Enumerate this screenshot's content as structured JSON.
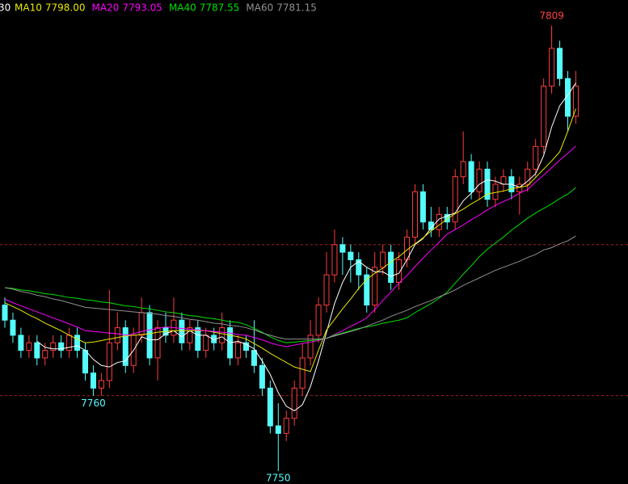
{
  "chart_data": {
    "type": "candlestick",
    "header_fragment": "30",
    "ylim": [
      7748.3,
      7812.4
    ],
    "dashed_levels": [
      7760,
      7780
    ],
    "up_color": "#ff3c3c",
    "down_color": "#54fcfc",
    "level_color": "#a02020",
    "candles": [
      [
        7772,
        7773,
        7769,
        7770
      ],
      [
        7770,
        7771,
        7767,
        7768
      ],
      [
        7768,
        7769,
        7765,
        7766
      ],
      [
        7766,
        7768,
        7765,
        7767
      ],
      [
        7767,
        7768,
        7764,
        7765
      ],
      [
        7765,
        7767,
        7764,
        7766
      ],
      [
        7766,
        7768,
        7765,
        7767
      ],
      [
        7767,
        7768,
        7765,
        7766
      ],
      [
        7766,
        7769,
        7765,
        7768
      ],
      [
        7768,
        7769,
        7765,
        7766
      ],
      [
        7766,
        7767,
        7762,
        7763
      ],
      [
        7763,
        7764,
        7760,
        7761
      ],
      [
        7761,
        7763,
        7760,
        7762
      ],
      [
        7762,
        7774,
        7761,
        7767
      ],
      [
        7767,
        7771,
        7766,
        7769
      ],
      [
        7769,
        7770,
        7763,
        7764
      ],
      [
        7764,
        7769,
        7763,
        7768
      ],
      [
        7768,
        7773,
        7767,
        7771
      ],
      [
        7771,
        7772,
        7764,
        7765
      ],
      [
        7765,
        7770,
        7762,
        7769
      ],
      [
        7769,
        7771,
        7767,
        7768
      ],
      [
        7768,
        7773,
        7767,
        7770
      ],
      [
        7770,
        7771,
        7766,
        7767
      ],
      [
        7767,
        7770,
        7766,
        7769
      ],
      [
        7769,
        7770,
        7765,
        7766
      ],
      [
        7766,
        7769,
        7765,
        7768
      ],
      [
        7768,
        7769,
        7766,
        7767
      ],
      [
        7767,
        7771,
        7766,
        7769
      ],
      [
        7769,
        7770,
        7764,
        7765
      ],
      [
        7765,
        7768,
        7764,
        7767
      ],
      [
        7767,
        7768,
        7765,
        7766
      ],
      [
        7766,
        7770,
        7763,
        7764
      ],
      [
        7764,
        7765,
        7760,
        7761
      ],
      [
        7761,
        7762,
        7755,
        7756
      ],
      [
        7756,
        7759,
        7750,
        7755
      ],
      [
        7755,
        7758,
        7754,
        7757
      ],
      [
        7757,
        7762,
        7756,
        7761
      ],
      [
        7761,
        7767,
        7760,
        7765
      ],
      [
        7765,
        7770,
        7764,
        7768
      ],
      [
        7768,
        7773,
        7767,
        7772
      ],
      [
        7772,
        7779,
        7771,
        7776
      ],
      [
        7776,
        7782,
        7775,
        7780
      ],
      [
        7780,
        7781,
        7776,
        7779
      ],
      [
        7779,
        7780,
        7775,
        7778
      ],
      [
        7778,
        7779,
        7774,
        7776
      ],
      [
        7776,
        7777,
        7771,
        7772
      ],
      [
        7772,
        7779,
        7771,
        7777
      ],
      [
        7777,
        7780,
        7776,
        7779
      ],
      [
        7779,
        7780,
        7774,
        7775
      ],
      [
        7775,
        7779,
        7774,
        7778
      ],
      [
        7778,
        7782,
        7777,
        7781
      ],
      [
        7781,
        7788,
        7780,
        7787
      ],
      [
        7787,
        7788,
        7782,
        7783
      ],
      [
        7783,
        7785,
        7781,
        7782
      ],
      [
        7782,
        7785,
        7781,
        7784
      ],
      [
        7784,
        7785,
        7782,
        7783
      ],
      [
        7783,
        7790,
        7782,
        7789
      ],
      [
        7789,
        7795,
        7788,
        7791
      ],
      [
        7791,
        7792,
        7786,
        7787
      ],
      [
        7787,
        7791,
        7786,
        7790
      ],
      [
        7790,
        7791,
        7785,
        7786
      ],
      [
        7786,
        7789,
        7785,
        7788
      ],
      [
        7788,
        7790,
        7787,
        7789
      ],
      [
        7789,
        7790,
        7786,
        7787
      ],
      [
        7787,
        7789,
        7784,
        7788
      ],
      [
        7788,
        7791,
        7787,
        7790
      ],
      [
        7790,
        7794,
        7789,
        7793
      ],
      [
        7793,
        7802,
        7792,
        7801
      ],
      [
        7801,
        7809,
        7800,
        7806
      ],
      [
        7806,
        7807,
        7801,
        7802
      ],
      [
        7802,
        7803,
        7795,
        7797
      ],
      [
        7797,
        7803,
        7796,
        7801
      ]
    ],
    "series": [
      {
        "color": "#ffffff",
        "values": [
          null,
          null,
          null,
          null,
          7767.2,
          7766.4,
          7766.2,
          7766.2,
          7766.4,
          7766.6,
          7766.0,
          7764.8,
          7764.0,
          7763.8,
          7764.4,
          7764.6,
          7766.0,
          7767.8,
          7767.4,
          7767.4,
          7768.2,
          7768.6,
          7767.8,
          7768.6,
          7768.0,
          7768.0,
          7767.4,
          7767.8,
          7767.0,
          7767.2,
          7766.8,
          7766.2,
          7764.6,
          7762.8,
          7760.4,
          7758.6,
          7758.0,
          7758.8,
          7761.2,
          7764.6,
          7768.4,
          7772.2,
          7775.0,
          7777.0,
          7777.8,
          7777.0,
          7776.4,
          7776.4,
          7775.8,
          7776.2,
          7778.0,
          7780.0,
          7780.8,
          7782.2,
          7783.4,
          7783.8,
          7784.2,
          7785.8,
          7786.8,
          7788.0,
          7788.6,
          7788.4,
          7788.0,
          7788.0,
          7787.6,
          7788.4,
          7789.4,
          7791.8,
          7795.6,
          7798.4,
          7799.8,
          7801.4
        ]
      },
      {
        "name": "MA10",
        "color": "#e8e800",
        "last": {
          "value": 7798,
          "label": "7798.00"
        },
        "values": [
          7772.3,
          7771.8,
          7771.3,
          7770.7,
          7770.2,
          7769.6,
          7769.1,
          7768.6,
          7768.0,
          7767.5,
          7767.0,
          7767.1,
          7767.3,
          7767.5,
          7767.7,
          7767.9,
          7768.0,
          7768.1,
          7768.2,
          7768.4,
          7768.5,
          7768.6,
          7768.6,
          7768.6,
          7768.6,
          7768.6,
          7768.4,
          7768.2,
          7768.0,
          7767.8,
          7767.5,
          7766.9,
          7766.3,
          7765.6,
          7765.0,
          7764.4,
          7763.8,
          7763.5,
          7763.2,
          7766.0,
          7768.7,
          7770.1,
          7771.5,
          7772.8,
          7774.2,
          7775.4,
          7776.2,
          7776.9,
          7777.7,
          7778.4,
          7779.3,
          7780.1,
          7780.9,
          7781.8,
          7782.6,
          7783.4,
          7784.1,
          7784.7,
          7785.4,
          7786.0,
          7786.7,
          7786.9,
          7787.1,
          7787.4,
          7787.6,
          7787.8,
          7788.9,
          7790.0,
          7791.1,
          7792.3,
          7795.0,
          7798
        ]
      },
      {
        "name": "MA20",
        "color": "#ff00ff",
        "last": {
          "value": 7793.05,
          "label": "7793.05"
        },
        "values": [
          7772.8,
          7772.3,
          7771.9,
          7771.5,
          7771.1,
          7770.7,
          7770.3,
          7769.9,
          7769.5,
          7769.1,
          7768.6,
          7768.5,
          7768.4,
          7768.3,
          7768.2,
          7768.0,
          7768.2,
          7768.5,
          7768.7,
          7768.9,
          7769.1,
          7769.0,
          7768.9,
          7768.8,
          7768.7,
          7768.6,
          7768.5,
          7768.4,
          7768.3,
          7768.1,
          7768.0,
          7767.7,
          7767.4,
          7767.0,
          7766.7,
          7766.5,
          7766.7,
          7766.9,
          7767.1,
          7767.3,
          7767.6,
          7768.1,
          7768.6,
          7769.2,
          7769.7,
          7770.3,
          7771.4,
          7772.6,
          7773.7,
          7774.9,
          7775.9,
          7777.1,
          7778.2,
          7779.3,
          7780.3,
          7781.4,
          7782.0,
          7782.6,
          7783.3,
          7783.9,
          7784.6,
          7785.2,
          7785.7,
          7786.2,
          7786.8,
          7787.3,
          7788.3,
          7789.2,
          7790.2,
          7791.2,
          7792.1,
          7793.05
        ]
      },
      {
        "name": "MA40",
        "color": "#00e000",
        "last": {
          "value": 7787.55,
          "label": "7787.55"
        },
        "values": [
          7774.3,
          7774.2,
          7774.0,
          7773.9,
          7773.7,
          7773.5,
          7773.4,
          7773.2,
          7773.0,
          7772.9,
          7772.7,
          7772.6,
          7772.4,
          7772.3,
          7772.1,
          7771.9,
          7771.8,
          7771.6,
          7771.5,
          7771.3,
          7771.1,
          7771.0,
          7770.8,
          7770.6,
          7770.5,
          7770.3,
          7770.2,
          7770.0,
          7769.8,
          7769.7,
          7769.4,
          7768.9,
          7768.4,
          7767.8,
          7767.3,
          7767.0,
          7767.1,
          7767.2,
          7767.3,
          7767.4,
          7767.6,
          7768.0,
          7768.3,
          7768.6,
          7768.9,
          7769.1,
          7769.3,
          7769.6,
          7769.8,
          7770.0,
          7770.3,
          7771.0,
          7771.6,
          7772.2,
          7772.9,
          7773.7,
          7774.9,
          7776.1,
          7777.2,
          7778.4,
          7779.4,
          7780.2,
          7781.0,
          7781.9,
          7782.7,
          7783.5,
          7784.2,
          7784.8,
          7785.4,
          7786.1,
          7786.7,
          7787.55
        ]
      },
      {
        "name": "MA60",
        "color": "#909090",
        "last": {
          "value": 7781.15,
          "label": "7781.15"
        },
        "values": [
          7774.3,
          7774.1,
          7773.8,
          7773.6,
          7773.3,
          7773.1,
          7772.8,
          7772.6,
          7772.3,
          7772.0,
          7771.7,
          7771.6,
          7771.5,
          7771.4,
          7771.3,
          7771.2,
          7771.1,
          7771.0,
          7770.9,
          7770.8,
          7770.6,
          7770.5,
          7770.3,
          7770.1,
          7770.0,
          7769.8,
          7769.6,
          7769.5,
          7769.3,
          7769.2,
          7769.0,
          7768.7,
          7768.3,
          7768.0,
          7767.7,
          7767.5,
          7767.5,
          7767.5,
          7767.5,
          7767.5,
          7767.6,
          7767.9,
          7768.2,
          7768.5,
          7768.8,
          7769.2,
          7769.6,
          7770.0,
          7770.5,
          7770.9,
          7771.3,
          7771.8,
          7772.2,
          7772.6,
          7773.1,
          7773.5,
          7774.0,
          7774.6,
          7775.1,
          7775.6,
          7776.1,
          7776.6,
          7777.0,
          7777.4,
          7777.8,
          7778.3,
          7778.7,
          7779.3,
          7779.6,
          7780.1,
          7780.5,
          7781.15
        ]
      }
    ]
  }
}
